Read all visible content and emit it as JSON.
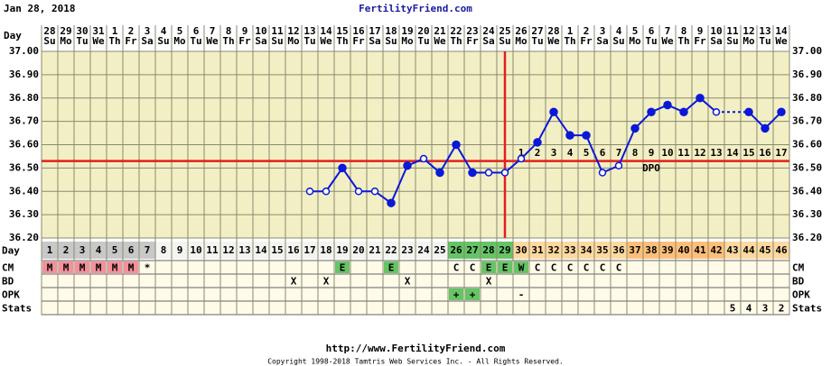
{
  "header": {
    "date": "Jan 28, 2018",
    "site": "FertilityFriend.com"
  },
  "chart_data": {
    "type": "line",
    "dates": [
      28,
      29,
      30,
      31,
      1,
      2,
      3,
      4,
      5,
      6,
      7,
      8,
      9,
      10,
      11,
      12,
      13,
      14,
      15,
      16,
      17,
      18,
      19,
      20,
      21,
      22,
      23,
      24,
      25,
      26,
      27,
      28,
      1,
      2,
      3,
      4,
      5,
      6,
      7,
      8,
      9,
      10,
      11,
      12,
      13,
      14
    ],
    "weekdays": [
      "Su",
      "Mo",
      "Tu",
      "We",
      "Th",
      "Fr",
      "Sa",
      "Su",
      "Mo",
      "Tu",
      "We",
      "Th",
      "Fr",
      "Sa",
      "Su",
      "Mo",
      "Tu",
      "We",
      "Th",
      "Fr",
      "Sa",
      "Su",
      "Mo",
      "Tu",
      "We",
      "Th",
      "Fr",
      "Sa",
      "Su",
      "Mo",
      "Tu",
      "We",
      "Th",
      "Fr",
      "Sa",
      "Su",
      "Mo",
      "Tu",
      "We",
      "Th",
      "Fr",
      "Sa",
      "Su",
      "Mo",
      "Tu",
      "We"
    ],
    "categories": [
      1,
      2,
      3,
      4,
      5,
      6,
      7,
      8,
      9,
      10,
      11,
      12,
      13,
      14,
      15,
      16,
      17,
      18,
      19,
      20,
      21,
      22,
      23,
      24,
      25,
      26,
      27,
      28,
      29,
      30,
      31,
      32,
      33,
      34,
      35,
      36,
      37,
      38,
      39,
      40,
      41,
      42,
      43,
      44,
      45,
      46
    ],
    "series": [
      {
        "color": "#0a18d8",
        "values": [
          null,
          null,
          null,
          null,
          null,
          null,
          null,
          null,
          null,
          null,
          null,
          null,
          null,
          null,
          null,
          null,
          36.4,
          36.4,
          36.5,
          36.4,
          36.4,
          36.35,
          36.51,
          36.54,
          36.48,
          36.6,
          36.48,
          36.48,
          36.48,
          36.54,
          36.61,
          36.74,
          36.64,
          36.64,
          36.48,
          36.51,
          36.67,
          36.74,
          36.77,
          36.74,
          36.8,
          36.74,
          null,
          36.74,
          36.67,
          36.74
        ],
        "open_days": [
          17,
          18,
          20,
          21,
          24,
          28,
          29,
          30,
          35,
          36,
          42
        ]
      }
    ],
    "ylim": [
      36.2,
      37.0
    ],
    "yticks": [
      {
        "value": 36.2,
        "label": "36.20"
      },
      {
        "value": 36.3,
        "label": "36.30"
      },
      {
        "value": 36.4,
        "label": "36.40"
      },
      {
        "value": 36.5,
        "label": "36.50"
      },
      {
        "value": 36.6,
        "label": "36.60"
      },
      {
        "value": 36.7,
        "label": "36.70"
      },
      {
        "value": 36.8,
        "label": "36.80"
      },
      {
        "value": 36.9,
        "label": "36.90"
      },
      {
        "value": 37.0,
        "label": "37.00"
      }
    ],
    "grid": true,
    "coverline": 36.53,
    "coverline_color": "#e02020",
    "ovulation_day": 29,
    "dpo": [
      null,
      null,
      null,
      null,
      null,
      null,
      null,
      null,
      null,
      null,
      null,
      null,
      null,
      null,
      null,
      null,
      null,
      null,
      null,
      null,
      null,
      null,
      null,
      null,
      null,
      null,
      null,
      null,
      null,
      1,
      2,
      3,
      4,
      5,
      6,
      7,
      8,
      9,
      10,
      11,
      12,
      13,
      14,
      15,
      16,
      17
    ],
    "dpo_label": "DPO",
    "row_labels": {
      "day": "Day",
      "cm": "CM",
      "bd": "BD",
      "opk": "OPK",
      "stats": "Stats"
    },
    "day_shading": [
      {
        "from": 1,
        "to": 7,
        "color": "#c8c8c8"
      },
      {
        "from": 8,
        "to": 25,
        "color": "#f4f4f0"
      },
      {
        "from": 26,
        "to": 29,
        "color": "#66c466"
      },
      {
        "from": 30,
        "to": 36,
        "color": "#ffd9a0"
      },
      {
        "from": 37,
        "to": 42,
        "color": "#ffbf7a"
      },
      {
        "from": 43,
        "to": 46,
        "color": "#ffd9a0"
      }
    ],
    "cm": [
      "M",
      "M",
      "M",
      "M",
      "M",
      "M",
      "*",
      null,
      null,
      null,
      null,
      null,
      null,
      null,
      null,
      null,
      null,
      null,
      "E",
      null,
      null,
      "E",
      null,
      null,
      null,
      "C",
      "C",
      "E",
      "E",
      "W",
      "C",
      "C",
      "C",
      "C",
      "C",
      "C",
      null,
      null,
      null,
      null,
      null,
      null,
      null,
      null,
      null,
      null
    ],
    "cm_colors": {
      "M": "#f4909a",
      "E": "#66c466",
      "W": "#66c466"
    },
    "bd": [
      null,
      null,
      null,
      null,
      null,
      null,
      null,
      null,
      null,
      null,
      null,
      null,
      null,
      null,
      null,
      "X",
      null,
      "X",
      null,
      null,
      null,
      null,
      "X",
      null,
      null,
      null,
      null,
      "X",
      null,
      null,
      null,
      null,
      null,
      null,
      null,
      null,
      null,
      null,
      null,
      null,
      null,
      null,
      null,
      null,
      null,
      null
    ],
    "opk": [
      null,
      null,
      null,
      null,
      null,
      null,
      null,
      null,
      null,
      null,
      null,
      null,
      null,
      null,
      null,
      null,
      null,
      null,
      null,
      null,
      null,
      null,
      null,
      null,
      null,
      "+",
      "+",
      null,
      null,
      "-",
      null,
      null,
      null,
      null,
      null,
      null,
      null,
      null,
      null,
      null,
      null,
      null,
      null,
      null,
      null,
      null
    ],
    "opk_colors": {
      "+": "#66c466"
    },
    "stats": [
      null,
      null,
      null,
      null,
      null,
      null,
      null,
      null,
      null,
      null,
      null,
      null,
      null,
      null,
      null,
      null,
      null,
      null,
      null,
      null,
      null,
      null,
      null,
      null,
      null,
      null,
      null,
      null,
      null,
      null,
      null,
      null,
      null,
      null,
      null,
      null,
      null,
      null,
      null,
      null,
      null,
      null,
      5,
      4,
      3,
      2
    ]
  },
  "footer": {
    "url": "http://www.FertilityFriend.com",
    "copyright": "Copyright 1998-2018 Tamtris Web Services Inc. - All Rights Reserved."
  }
}
